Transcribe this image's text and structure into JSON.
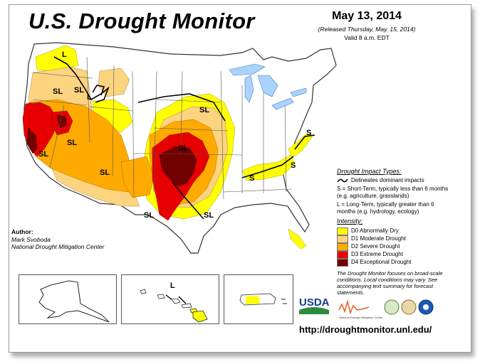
{
  "header": {
    "title": "U.S. Drought Monitor",
    "date": "May 13, 2014",
    "released": "(Released Thursday, May. 15, 2014)",
    "valid": "Valid 8 a.m. EDT"
  },
  "author": {
    "heading": "Author:",
    "name": "Mark Svoboda",
    "org": "National Drought Mitigation Center"
  },
  "legend": {
    "impact_heading": "Drought Impact Types:",
    "dominant": "Delineates dominant impacts",
    "short_term": "S = Short-Term, typically less than 6 months (e.g. agriculture, grasslands)",
    "long_term": "L = Long-Term, typically greater than 6 months (e.g. hydrology, ecology)",
    "intensity_heading": "Intensity:",
    "categories": [
      {
        "label": "D0 Abnormally Dry",
        "color": "#ffff00"
      },
      {
        "label": "D1 Moderate Drought",
        "color": "#fcd37f"
      },
      {
        "label": "D2 Severe Drought",
        "color": "#ffaa00"
      },
      {
        "label": "D3 Extreme Drought",
        "color": "#e60000"
      },
      {
        "label": "D4 Exceptional Drought",
        "color": "#730000"
      }
    ],
    "note": "The Drought Monitor focuses on broad-scale conditions. Local conditions may vary. See accompanying text summary for forecast statements."
  },
  "map_labels": {
    "L_nw": "L",
    "SL_or": "SL",
    "SL_id": "SL",
    "L_id": "L",
    "SL_nv": "SL",
    "SL_ca": "SL",
    "SL_az": "SL",
    "SL_co": "SL",
    "SL_sd": "SL",
    "SL_tx_w": "SL",
    "SL_tx_e": "SL",
    "S_ky": "S",
    "S_va": "S",
    "S_pa": "S",
    "L_hi": "L"
  },
  "logos": {
    "usda": "USDA",
    "ndmc": "National Drought Mitigation Center"
  },
  "url": "http://droughtmonitor.unl.edu/"
}
